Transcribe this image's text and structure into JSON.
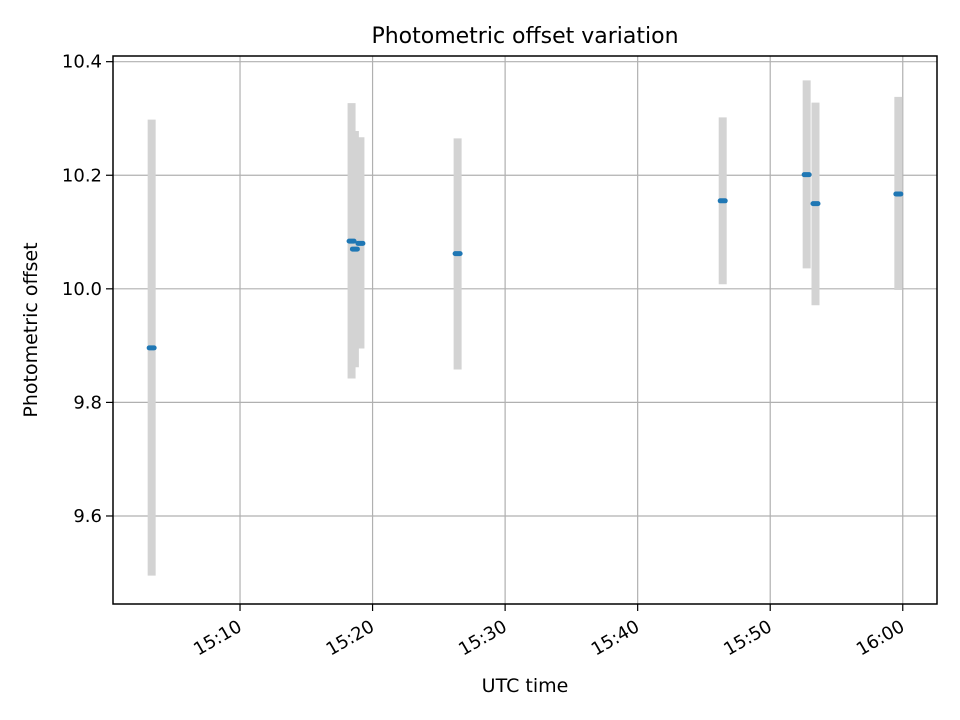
{
  "chart_data": {
    "type": "scatter",
    "title": "Photometric offset variation",
    "xlabel": "UTC time",
    "ylabel": "Photometric offset",
    "x_is_time": true,
    "xlim": [
      "15:00:25",
      "16:02:35"
    ],
    "ylim": [
      9.445,
      10.41
    ],
    "x_ticks": [
      "15:10",
      "15:20",
      "15:30",
      "15:40",
      "15:50",
      "16:00"
    ],
    "y_ticks": [
      "9.6",
      "9.8",
      "10.0",
      "10.2",
      "10.4"
    ],
    "grid": true,
    "point_color": "#1f77b4",
    "errorbar_color": "#d3d3d3",
    "points": [
      {
        "x": "15:03:20",
        "y": 9.896,
        "yerr_low": 9.495,
        "yerr_high": 10.298
      },
      {
        "x": "15:18:25",
        "y": 10.084,
        "yerr_low": 9.842,
        "yerr_high": 10.327
      },
      {
        "x": "15:18:40",
        "y": 10.07,
        "yerr_low": 9.862,
        "yerr_high": 10.278
      },
      {
        "x": "15:19:05",
        "y": 10.08,
        "yerr_low": 9.895,
        "yerr_high": 10.267
      },
      {
        "x": "15:26:25",
        "y": 10.062,
        "yerr_low": 9.858,
        "yerr_high": 10.265
      },
      {
        "x": "15:46:25",
        "y": 10.155,
        "yerr_low": 10.008,
        "yerr_high": 10.302
      },
      {
        "x": "15:52:45",
        "y": 10.201,
        "yerr_low": 10.036,
        "yerr_high": 10.367
      },
      {
        "x": "15:53:25",
        "y": 10.15,
        "yerr_low": 9.971,
        "yerr_high": 10.328
      },
      {
        "x": "15:59:40",
        "y": 10.167,
        "yerr_low": 9.998,
        "yerr_high": 10.338
      }
    ]
  }
}
